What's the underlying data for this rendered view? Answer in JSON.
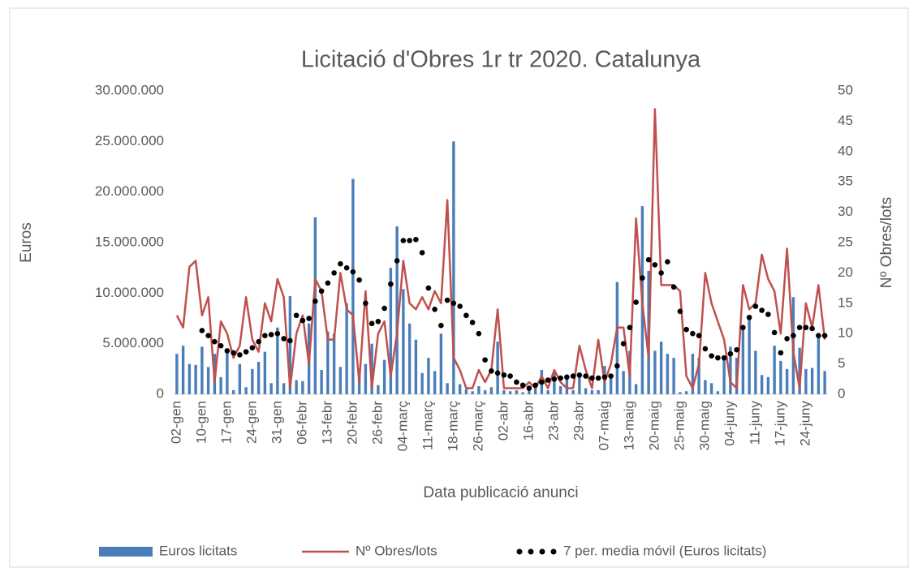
{
  "chart_data": {
    "type": "combo",
    "title": "Licitació d'Obres 1r tr 2020. Catalunya",
    "x_label": "Data publicació anunci",
    "y_label": "Euros",
    "y2_label": "Nº Obres/lots",
    "categories": [
      "02-gen",
      null,
      null,
      null,
      "10-gen",
      null,
      null,
      null,
      "17-gen",
      null,
      null,
      null,
      "24-gen",
      null,
      null,
      null,
      "31-gen",
      null,
      null,
      null,
      "06-febr",
      null,
      null,
      null,
      "13-febr",
      null,
      null,
      null,
      "20-febr",
      null,
      null,
      null,
      "26-febr",
      null,
      null,
      null,
      "04-març",
      null,
      null,
      null,
      "11-març",
      null,
      null,
      null,
      "18-març",
      null,
      null,
      null,
      "26-març",
      null,
      null,
      null,
      "02-abr",
      null,
      null,
      null,
      "16-abr",
      null,
      null,
      null,
      "23-abr",
      null,
      null,
      null,
      "29-abr",
      null,
      null,
      null,
      "07-maig",
      null,
      null,
      null,
      "13-maig",
      null,
      null,
      null,
      "20-maig",
      null,
      null,
      null,
      "25-maig",
      null,
      null,
      null,
      "30-maig",
      null,
      null,
      null,
      "04-juny",
      null,
      null,
      null,
      "11-juny",
      null,
      null,
      null,
      "17-juny",
      null,
      null,
      null,
      "24-juny",
      null,
      null,
      null
    ],
    "series": [
      {
        "name": "Euros licitats",
        "type": "bar",
        "color": "#4a7ebb",
        "values": [
          4000000,
          4800000,
          3000000,
          2900000,
          4700000,
          2700000,
          4000000,
          1700000,
          4300000,
          400000,
          3000000,
          700000,
          2500000,
          3200000,
          4200000,
          1100000,
          6600000,
          1100000,
          9700000,
          1400000,
          1300000,
          7000000,
          17500000,
          2400000,
          6200000,
          6000000,
          2700000,
          9000000,
          21300000,
          2500000,
          3000000,
          5000000,
          900000,
          3400000,
          12500000,
          16600000,
          10400000,
          7000000,
          5400000,
          2100000,
          3600000,
          2300000,
          6000000,
          1100000,
          25000000,
          1000000,
          500000,
          300000,
          800000,
          400000,
          700000,
          5200000,
          400000,
          300000,
          400000,
          200000,
          500000,
          1000000,
          2400000,
          400000,
          2200000,
          800000,
          1700000,
          400000,
          2000000,
          600000,
          400000,
          400000,
          2800000,
          1800000,
          11100000,
          2300000,
          4300000,
          1000000,
          18600000,
          12200000,
          4300000,
          5200000,
          4000000,
          3600000,
          200000,
          300000,
          4000000,
          3600000,
          1400000,
          1100000,
          300000,
          3400000,
          4700000,
          3600000,
          6400000,
          7800000,
          4300000,
          1900000,
          1700000,
          4800000,
          3300000,
          2500000,
          9600000,
          4600000,
          2500000,
          2600000,
          5900000,
          2300000
        ]
      },
      {
        "name": "Nº Obres/lots",
        "type": "line",
        "axis": "y2",
        "color": "#c0504d",
        "values": [
          13,
          11,
          21,
          22,
          13,
          16,
          2,
          12,
          10,
          6,
          8,
          16,
          9,
          7,
          15,
          12,
          19,
          16,
          1,
          10,
          13,
          5,
          19,
          17,
          9,
          9,
          20,
          14,
          13,
          2,
          17,
          1,
          10,
          12,
          3,
          10,
          22,
          15,
          14,
          16,
          14,
          17,
          15,
          32,
          6,
          4,
          1,
          1,
          4,
          2,
          4,
          14,
          1,
          1,
          1,
          1,
          2,
          1,
          3,
          1,
          4,
          2,
          1,
          1,
          8,
          4,
          1,
          9,
          2,
          5,
          11,
          11,
          3,
          29,
          15,
          6,
          47,
          18,
          18,
          18,
          17,
          3,
          1,
          5,
          20,
          15,
          12,
          9,
          2,
          1,
          18,
          14,
          15,
          23,
          19,
          17,
          10,
          24,
          7,
          1,
          15,
          11,
          18,
          9
        ]
      },
      {
        "name": "7 per. media móvil (Euros licitats)",
        "type": "dots",
        "color": "#000000",
        "values": [
          null,
          null,
          null,
          null,
          6300000,
          5800000,
          5200000,
          4800000,
          4300000,
          4100000,
          3900000,
          4200000,
          4600000,
          5200000,
          5800000,
          5900000,
          6000000,
          5500000,
          5300000,
          7800000,
          7300000,
          7500000,
          9200000,
          10200000,
          11000000,
          12000000,
          12900000,
          12500000,
          12100000,
          11300000,
          9000000,
          7000000,
          7200000,
          8500000,
          10900000,
          13200000,
          15200000,
          15200000,
          15300000,
          14000000,
          10500000,
          8400000,
          6800000,
          9300000,
          9000000,
          8700000,
          7800000,
          7100000,
          6000000,
          3400000,
          2300000,
          2100000,
          1900000,
          1800000,
          1200000,
          900000,
          600000,
          900000,
          1200000,
          1400000,
          1500000,
          1600000,
          1700000,
          1800000,
          1900000,
          1800000,
          1600000,
          1600000,
          1700000,
          1800000,
          2800000,
          5000000,
          6600000,
          9100000,
          11500000,
          13300000,
          12800000,
          12000000,
          13100000,
          10600000,
          8200000,
          6400000,
          6000000,
          5800000,
          4500000,
          3800000,
          3600000,
          3600000,
          4000000,
          4400000,
          6600000,
          7600000,
          8700000,
          8300000,
          7900000,
          6100000,
          4100000,
          5500000,
          5800000,
          6600000,
          6600000,
          6500000,
          5800000,
          5800000
        ]
      }
    ],
    "ylim": [
      0,
      30000000
    ],
    "yticks": [
      0,
      {
        "value": 5000000,
        "label": "5.000.000"
      },
      {
        "value": 10000000,
        "label": "10.000.000"
      },
      {
        "value": 15000000,
        "label": "15.000.000"
      },
      {
        "value": 20000000,
        "label": "20.000.000"
      },
      {
        "value": 25000000,
        "label": "25.000.000"
      },
      {
        "value": 30000000,
        "label": "30.000.000"
      }
    ],
    "y2lim": [
      0,
      50
    ],
    "y2ticks": [
      0,
      5,
      10,
      15,
      20,
      25,
      30,
      35,
      40,
      45,
      50
    ],
    "legend": "bottom"
  }
}
